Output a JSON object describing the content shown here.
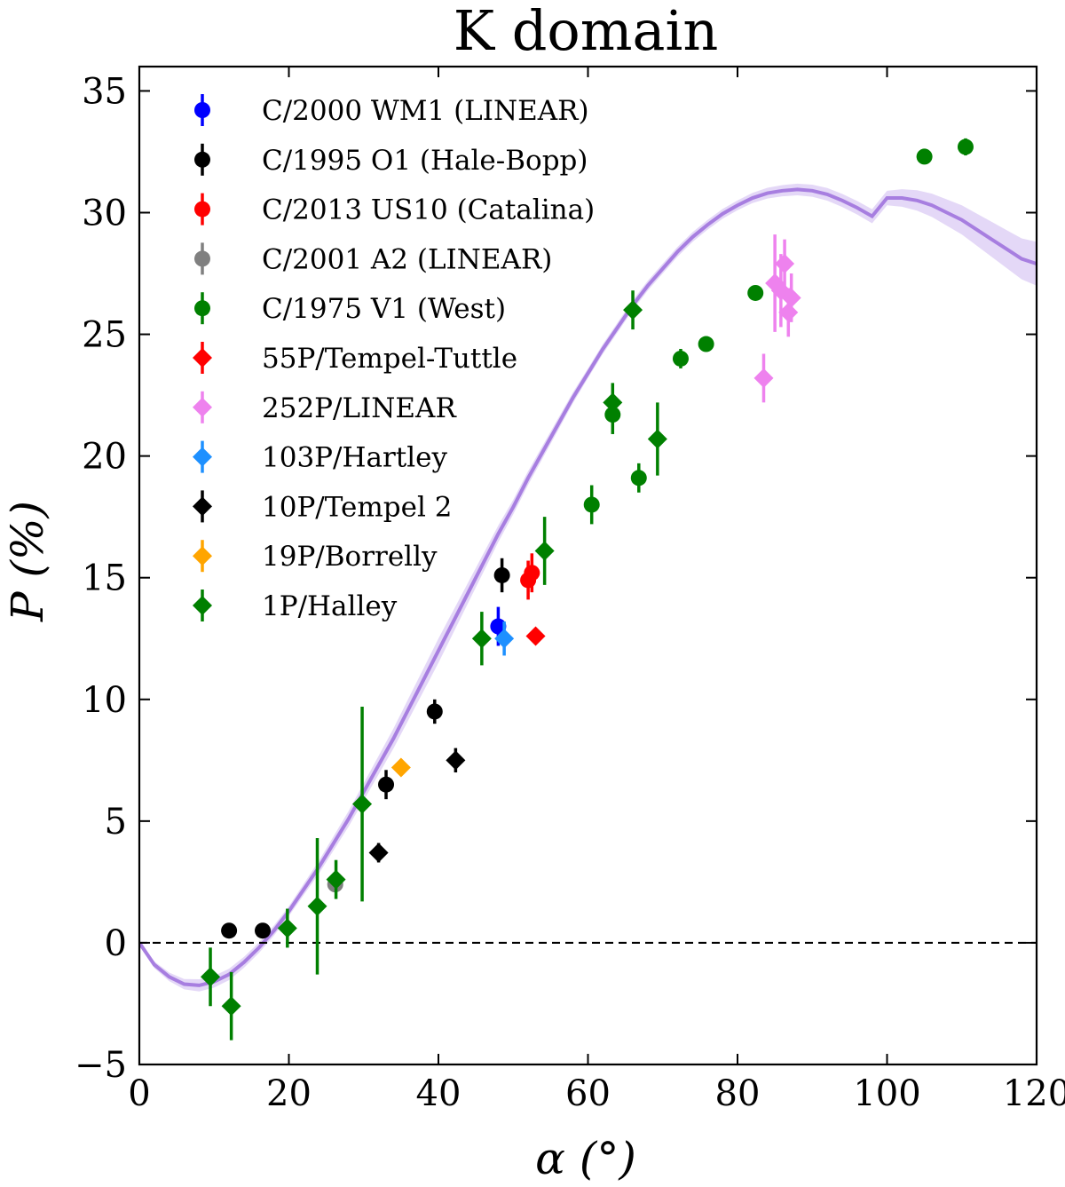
{
  "chart_data": {
    "type": "scatter",
    "title": "K domain",
    "xlabel": "α (°)",
    "ylabel": "P (%)",
    "xlim": [
      0,
      120
    ],
    "ylim": [
      -5,
      36
    ],
    "xticks": [
      0,
      20,
      40,
      60,
      80,
      100,
      120
    ],
    "yticks": [
      -5,
      0,
      5,
      10,
      15,
      20,
      25,
      30,
      35
    ],
    "xtick_labels": [
      "0",
      "20",
      "40",
      "60",
      "80",
      "100",
      "120"
    ],
    "ytick_labels": [
      "−5",
      "0",
      "5",
      "10",
      "15",
      "20",
      "25",
      "30",
      "35"
    ],
    "reference_line": {
      "y": 0,
      "style": "dashed",
      "color": "#000000"
    },
    "fit_curve": {
      "color": "#a77ee0",
      "band_color": "#d8c8f3",
      "points": [
        [
          0,
          0
        ],
        [
          2,
          -0.9
        ],
        [
          4,
          -1.4
        ],
        [
          6,
          -1.7
        ],
        [
          8,
          -1.75
        ],
        [
          10,
          -1.6
        ],
        [
          12,
          -1.3
        ],
        [
          14,
          -0.8
        ],
        [
          16,
          -0.2
        ],
        [
          18,
          0.5
        ],
        [
          20,
          1.3
        ],
        [
          22,
          2.2
        ],
        [
          24,
          3.1
        ],
        [
          26,
          4.1
        ],
        [
          28,
          5.1
        ],
        [
          30,
          6.2
        ],
        [
          32,
          7.3
        ],
        [
          34,
          8.4
        ],
        [
          36,
          9.6
        ],
        [
          38,
          10.8
        ],
        [
          40,
          12.0
        ],
        [
          42,
          13.2
        ],
        [
          44,
          14.4
        ],
        [
          46,
          15.6
        ],
        [
          48,
          16.8
        ],
        [
          50,
          17.9
        ],
        [
          52,
          19.1
        ],
        [
          54,
          20.2
        ],
        [
          56,
          21.3
        ],
        [
          58,
          22.4
        ],
        [
          60,
          23.4
        ],
        [
          62,
          24.4
        ],
        [
          64,
          25.3
        ],
        [
          66,
          26.2
        ],
        [
          68,
          27.0
        ],
        [
          70,
          27.7
        ],
        [
          72,
          28.4
        ],
        [
          74,
          29.0
        ],
        [
          76,
          29.5
        ],
        [
          78,
          29.95
        ],
        [
          80,
          30.3
        ],
        [
          82,
          30.6
        ],
        [
          84,
          30.8
        ],
        [
          86,
          30.9
        ],
        [
          88,
          30.95
        ],
        [
          90,
          30.9
        ],
        [
          92,
          30.75
        ],
        [
          94,
          30.5
        ],
        [
          96,
          30.2
        ],
        [
          98,
          29.85
        ],
        [
          100,
          30.6
        ],
        [
          102,
          30.6
        ],
        [
          104,
          30.5
        ],
        [
          106,
          30.3
        ],
        [
          108,
          30.0
        ],
        [
          110,
          29.7
        ],
        [
          112,
          29.3
        ],
        [
          114,
          28.9
        ],
        [
          116,
          28.5
        ],
        [
          118,
          28.1
        ],
        [
          120,
          27.9
        ]
      ],
      "band_halfwidth": [
        [
          0,
          0.1
        ],
        [
          8,
          0.25
        ],
        [
          20,
          0.2
        ],
        [
          30,
          0.35
        ],
        [
          40,
          0.5
        ],
        [
          50,
          0.3
        ],
        [
          60,
          0.2
        ],
        [
          80,
          0.2
        ],
        [
          100,
          0.3
        ],
        [
          110,
          0.6
        ],
        [
          120,
          0.9
        ]
      ]
    },
    "series": [
      {
        "name": "C/2000 WM1 (LINEAR)",
        "color": "#0000ff",
        "marker": "circle",
        "points": [
          [
            48.0,
            13.0,
            0.8
          ]
        ]
      },
      {
        "name": "C/1995 O1 (Hale-Bopp)",
        "color": "#000000",
        "marker": "circle",
        "points": [
          [
            12.0,
            0.5,
            0.15
          ],
          [
            16.5,
            0.5,
            0.15
          ],
          [
            33.0,
            6.5,
            0.6
          ],
          [
            39.5,
            9.5,
            0.5
          ],
          [
            48.5,
            15.1,
            0.7
          ]
        ]
      },
      {
        "name": "C/2013 US10 (Catalina)",
        "color": "#ff0000",
        "marker": "circle",
        "points": [
          [
            52.0,
            14.9,
            0.8
          ],
          [
            52.5,
            15.2,
            0.8
          ]
        ]
      },
      {
        "name": "C/2001 A2 (LINEAR)",
        "color": "#808080",
        "marker": "circle",
        "points": [
          [
            26.2,
            2.4,
            0.3
          ]
        ]
      },
      {
        "name": "C/1975 V1 (West)",
        "color": "#008000",
        "marker": "circle",
        "points": [
          [
            60.5,
            18.0,
            0.8
          ],
          [
            63.3,
            21.7,
            0.8
          ],
          [
            66.8,
            19.1,
            0.6
          ],
          [
            72.4,
            24.0,
            0.4
          ],
          [
            75.8,
            24.6,
            0.3
          ],
          [
            82.4,
            26.7,
            0.3
          ],
          [
            105.0,
            32.3,
            0.3
          ],
          [
            110.5,
            32.7,
            0.35
          ]
        ]
      },
      {
        "name": "55P/Tempel-Tuttle",
        "color": "#ff0000",
        "marker": "diamond",
        "points": [
          [
            53.0,
            12.6,
            0.3
          ]
        ]
      },
      {
        "name": "252P/LINEAR",
        "color": "#ee82ee",
        "marker": "diamond",
        "points": [
          [
            83.5,
            23.2,
            1.0
          ],
          [
            85.0,
            27.1,
            2.0
          ],
          [
            85.8,
            26.8,
            1.5
          ],
          [
            86.3,
            27.9,
            1.0
          ],
          [
            86.8,
            25.9,
            1.0
          ],
          [
            87.2,
            26.5,
            1.0
          ]
        ]
      },
      {
        "name": "103P/Hartley",
        "color": "#1e90ff",
        "marker": "diamond",
        "points": [
          [
            48.8,
            12.5,
            0.7
          ]
        ]
      },
      {
        "name": "10P/Tempel 2",
        "color": "#000000",
        "marker": "diamond",
        "points": [
          [
            32.0,
            3.7,
            0.4
          ],
          [
            42.3,
            7.5,
            0.5
          ]
        ]
      },
      {
        "name": "19P/Borrelly",
        "color": "#ffa500",
        "marker": "diamond",
        "points": [
          [
            35.0,
            7.2,
            0.3
          ]
        ]
      },
      {
        "name": "1P/Halley",
        "color": "#008000",
        "marker": "diamond",
        "points": [
          [
            9.5,
            -1.4,
            1.2
          ],
          [
            12.3,
            -2.6,
            1.4
          ],
          [
            19.8,
            0.6,
            0.8
          ],
          [
            23.8,
            1.5,
            2.8
          ],
          [
            26.3,
            2.6,
            0.8
          ],
          [
            29.8,
            5.7,
            4.0
          ],
          [
            45.8,
            12.5,
            1.1
          ],
          [
            54.2,
            16.1,
            1.4
          ],
          [
            63.3,
            22.2,
            0.8
          ],
          [
            66.0,
            26.0,
            0.8
          ],
          [
            69.3,
            20.7,
            1.5
          ]
        ]
      }
    ],
    "legend_position": "top-left"
  }
}
